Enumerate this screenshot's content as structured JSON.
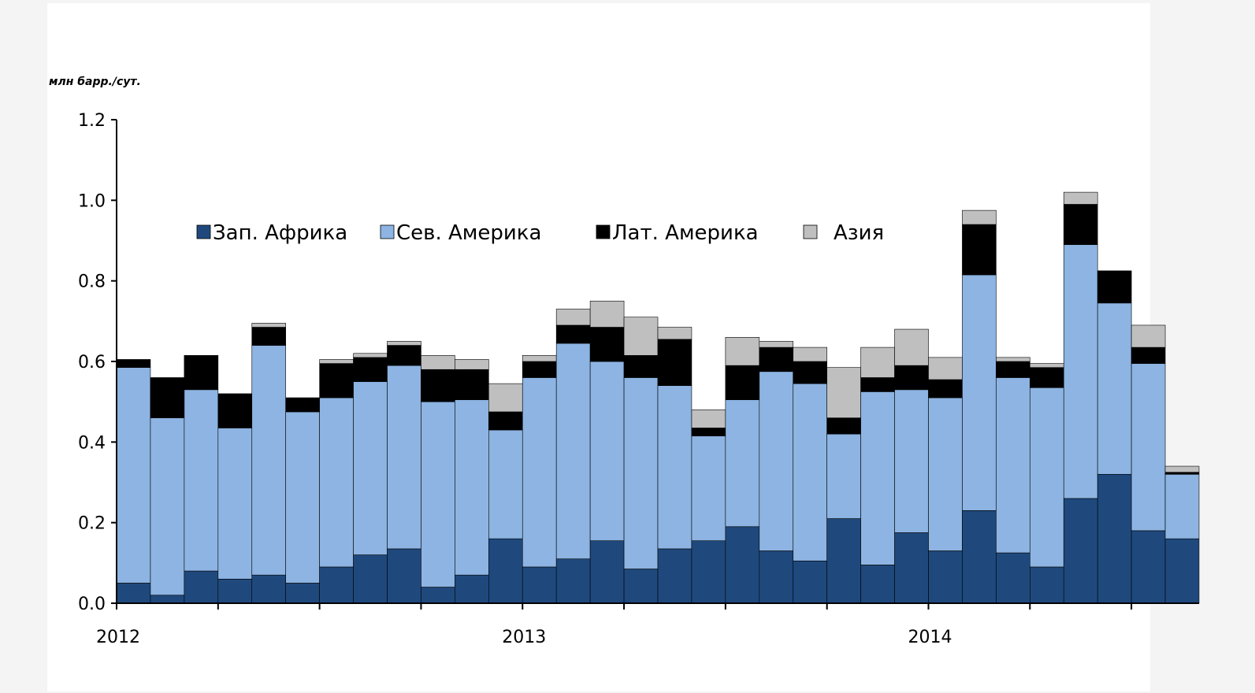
{
  "chart_data": {
    "type": "bar",
    "stacked": true,
    "unit_label": "млн барр./сут.",
    "ylim": [
      0,
      1.2
    ],
    "yticks": [
      "0.0",
      "0.2",
      "0.4",
      "0.6",
      "0.8",
      "1.0",
      "1.2"
    ],
    "ytick_values": [
      0,
      0.2,
      0.4,
      0.6,
      0.8,
      1.0,
      1.2
    ],
    "x_labels": [
      {
        "label": "2012",
        "index": 0
      },
      {
        "label": "2013",
        "index": 12
      },
      {
        "label": "2014",
        "index": 24
      }
    ],
    "n_periods": 32,
    "legend_position": "top-center",
    "series": [
      {
        "name": "Зап. Африка",
        "color": "#1f497d",
        "values": [
          0.05,
          0.02,
          0.08,
          0.06,
          0.07,
          0.05,
          0.09,
          0.12,
          0.135,
          0.04,
          0.07,
          0.16,
          0.09,
          0.11,
          0.155,
          0.085,
          0.135,
          0.155,
          0.19,
          0.13,
          0.105,
          0.21,
          0.095,
          0.175,
          0.13,
          0.23,
          0.125,
          0.09,
          0.26,
          0.32,
          0.18,
          0.16
        ]
      },
      {
        "name": "Сев. Америка",
        "color": "#8db4e2",
        "values": [
          0.535,
          0.44,
          0.45,
          0.375,
          0.57,
          0.425,
          0.42,
          0.43,
          0.455,
          0.46,
          0.435,
          0.27,
          0.47,
          0.535,
          0.445,
          0.475,
          0.405,
          0.26,
          0.315,
          0.445,
          0.44,
          0.21,
          0.43,
          0.355,
          0.38,
          0.585,
          0.435,
          0.445,
          0.63,
          0.425,
          0.415,
          0.16
        ]
      },
      {
        "name": "Лат. Америка",
        "color": "#000000",
        "values": [
          0.02,
          0.1,
          0.085,
          0.085,
          0.045,
          0.035,
          0.085,
          0.06,
          0.05,
          0.08,
          0.075,
          0.045,
          0.04,
          0.045,
          0.085,
          0.055,
          0.115,
          0.02,
          0.085,
          0.06,
          0.055,
          0.04,
          0.035,
          0.06,
          0.045,
          0.125,
          0.04,
          0.05,
          0.1,
          0.08,
          0.04,
          0.005
        ]
      },
      {
        "name": "Азия",
        "color": "#bfbfbf",
        "values": [
          0.0,
          0.0,
          0.0,
          0.0,
          0.01,
          0.0,
          0.01,
          0.01,
          0.01,
          0.035,
          0.025,
          0.07,
          0.015,
          0.04,
          0.065,
          0.095,
          0.03,
          0.045,
          0.07,
          0.015,
          0.035,
          0.125,
          0.075,
          0.09,
          0.055,
          0.035,
          0.01,
          0.01,
          0.03,
          0.0,
          0.055,
          0.015
        ]
      }
    ]
  }
}
